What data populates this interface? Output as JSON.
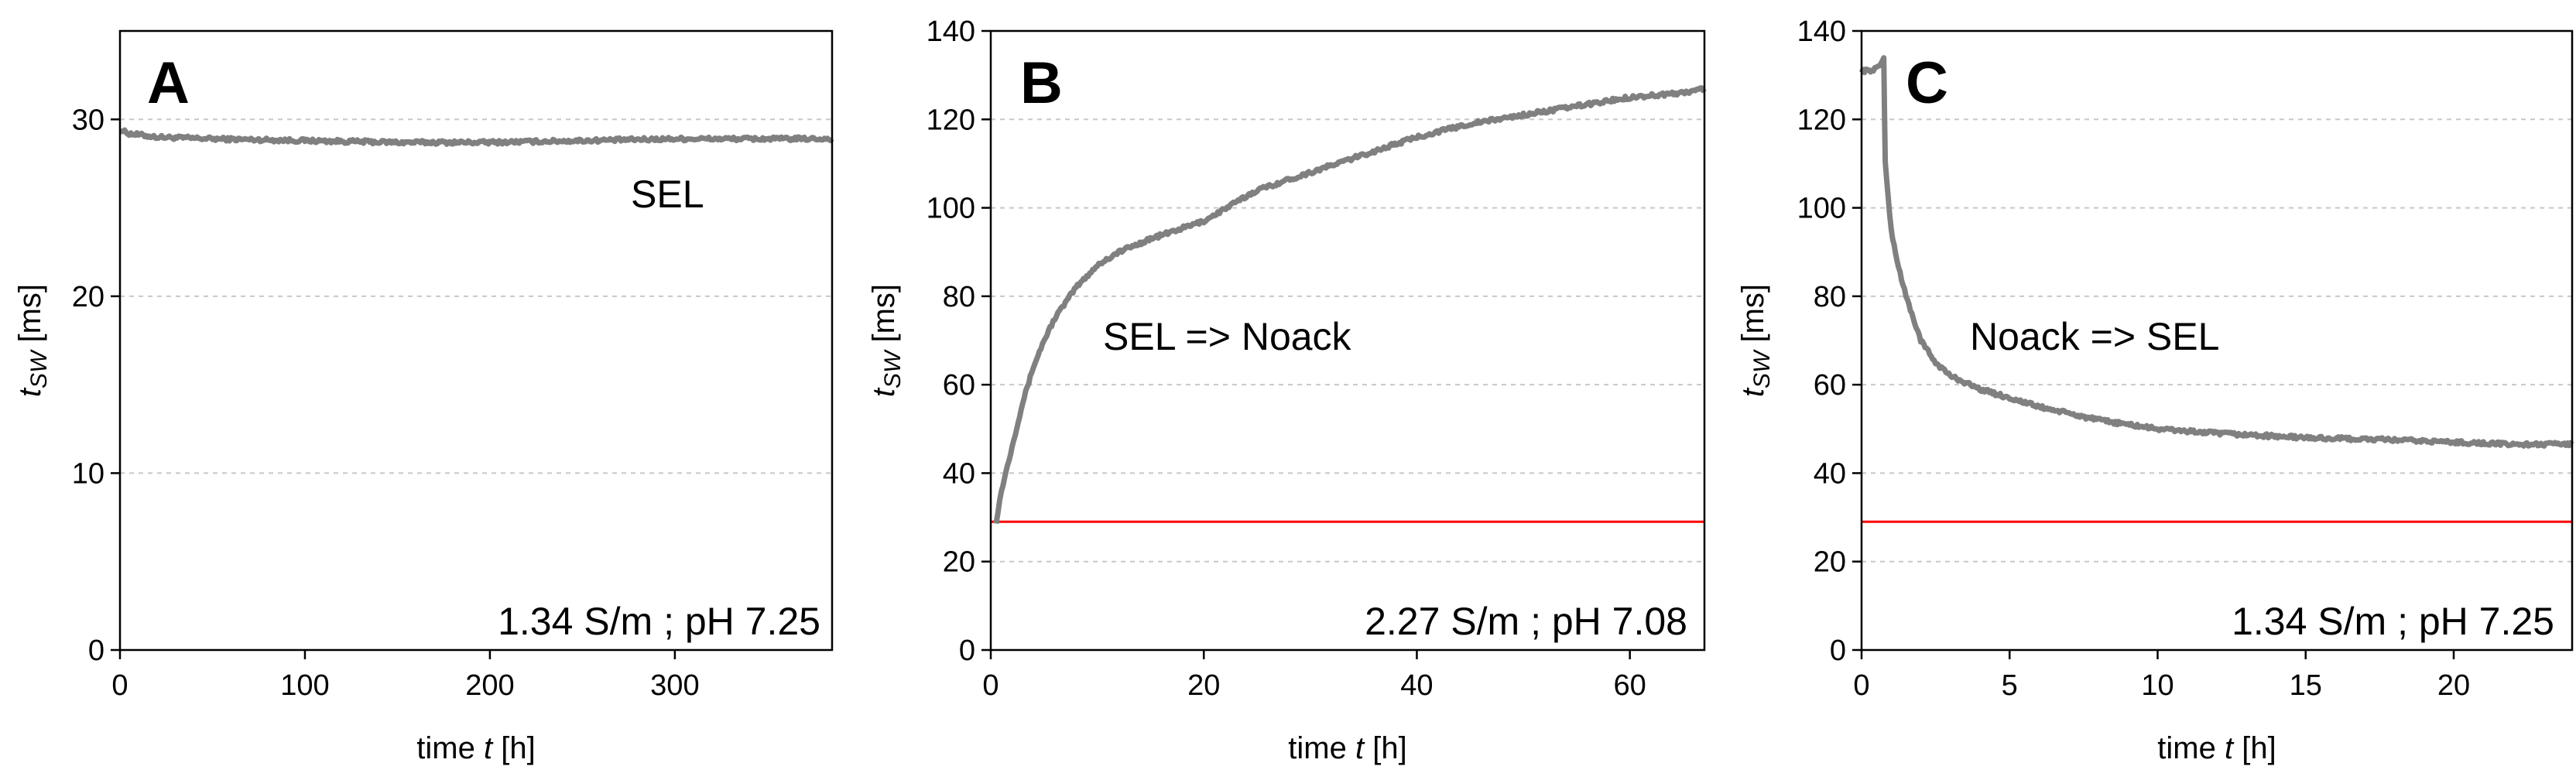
{
  "chart_data": [
    {
      "type": "line",
      "panel_letter": "A",
      "annotation": "SEL",
      "condition": "1.34 S/m ; pH 7.25",
      "xlabel_pre": "time ",
      "xlabel_var": "t",
      "xlabel_unit": " [h]",
      "ylabel_var": "t",
      "ylabel_sub": "SW",
      "ylabel_unit": " [ms]",
      "xlim": [
        0,
        385
      ],
      "ylim": [
        0,
        35
      ],
      "xticks": [
        0,
        100,
        200,
        300
      ],
      "yticks": [
        0,
        10,
        20,
        30
      ],
      "grid": "horizontal dashed",
      "series": [
        {
          "name": "t_SW",
          "color": "#808080",
          "x": [
            0,
            5,
            20,
            50,
            100,
            150,
            200,
            250,
            300,
            350,
            385
          ],
          "y": [
            29.4,
            29.2,
            29.0,
            28.9,
            28.8,
            28.7,
            28.7,
            28.8,
            28.9,
            28.9,
            28.9
          ]
        }
      ]
    },
    {
      "type": "line",
      "panel_letter": "B",
      "annotation": "SEL => Noack",
      "condition": "2.27 S/m ; pH 7.08",
      "xlabel_pre": "time ",
      "xlabel_var": "t",
      "xlabel_unit": " [h]",
      "ylabel_var": "t",
      "ylabel_sub": "SW",
      "ylabel_unit": " [ms]",
      "xlim": [
        0,
        67
      ],
      "ylim": [
        0,
        140
      ],
      "xticks": [
        0,
        20,
        40,
        60
      ],
      "yticks": [
        0,
        20,
        40,
        60,
        80,
        100,
        120,
        140
      ],
      "grid": "horizontal dashed",
      "reference_line": {
        "y": 29,
        "color": "#ff0000"
      },
      "series": [
        {
          "name": "t_SW",
          "color": "#808080",
          "x": [
            0.5,
            1,
            2,
            3,
            4,
            5,
            6,
            8,
            10,
            12,
            15,
            20,
            25,
            30,
            35,
            40,
            45,
            50,
            55,
            60,
            65,
            67
          ],
          "y": [
            29,
            36,
            46,
            56,
            64,
            70,
            75,
            82,
            87,
            90,
            93,
            97,
            104,
            108,
            112,
            116,
            119,
            121,
            123,
            125,
            126,
            127
          ]
        }
      ]
    },
    {
      "type": "line",
      "panel_letter": "C",
      "annotation": "Noack => SEL",
      "condition": "1.34 S/m ; pH 7.25",
      "xlabel_pre": "time ",
      "xlabel_var": "t",
      "xlabel_unit": " [h]",
      "ylabel_var": "t",
      "ylabel_sub": "SW",
      "ylabel_unit": " [ms]",
      "xlim": [
        0,
        24
      ],
      "ylim": [
        0,
        140
      ],
      "xticks": [
        0,
        5,
        10,
        15,
        20
      ],
      "yticks": [
        0,
        20,
        40,
        60,
        80,
        100,
        120,
        140
      ],
      "grid": "horizontal dashed",
      "reference_line": {
        "y": 29,
        "color": "#ff0000"
      },
      "series": [
        {
          "name": "t_SW",
          "color": "#808080",
          "x": [
            0,
            0.3,
            0.6,
            0.75,
            0.8,
            1,
            1.2,
            1.5,
            2,
            2.5,
            3,
            4,
            5,
            6,
            8,
            10,
            12,
            15,
            18,
            20,
            22,
            24
          ],
          "y": [
            131,
            131,
            132,
            134,
            110,
            95,
            88,
            80,
            70,
            65,
            62,
            59,
            57,
            55,
            52,
            50,
            49,
            48,
            47.5,
            47,
            46.5,
            46.5
          ]
        }
      ]
    }
  ]
}
